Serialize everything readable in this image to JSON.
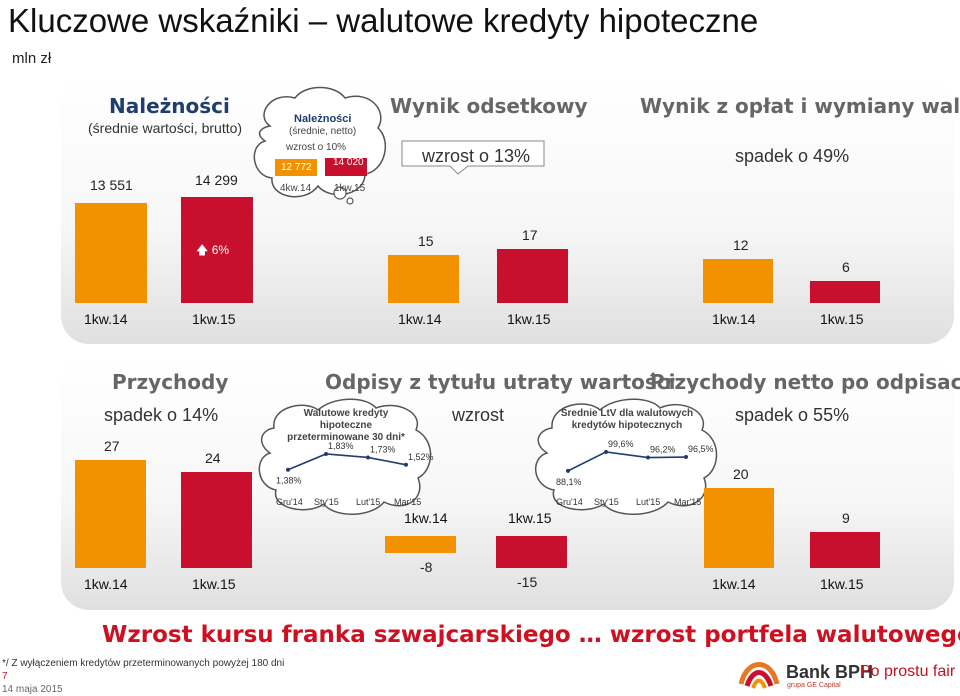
{
  "title": "Kluczowe wskaźniki – walutowe kredyty hipoteczne",
  "unit": "mln zł",
  "colors": {
    "orange": "#f39200",
    "red": "#c8102e",
    "navy": "#1f3d6e",
    "gray_title": "#666666",
    "accent_orange_title": "#e87722"
  },
  "panel_top": {
    "receivables": {
      "title": "Należności",
      "subtitle": "(średnie wartości, brutto)",
      "change_label": "6%",
      "change_icon": "arrow-up-icon",
      "categories": [
        "1kw.14",
        "1kw.15"
      ],
      "value_labels": [
        "13 551",
        "14 299"
      ],
      "values": [
        13551,
        14299
      ],
      "cloud": {
        "title": "Należności",
        "subtitle": "(średnie, netto)",
        "change": "wzrost o 10%",
        "value_labels": [
          "12 772",
          "14 020"
        ],
        "values": [
          12772,
          14020
        ],
        "categories": [
          "4kw.14",
          "1kw.15"
        ]
      }
    },
    "interest": {
      "title": "Wynik odsetkowy",
      "change": "wzrost o 13%",
      "categories": [
        "1kw.14",
        "1kw.15"
      ],
      "value_labels": [
        "15",
        "17"
      ],
      "values": [
        15,
        17
      ]
    },
    "fees": {
      "title": "Wynik z opłat i wymiany walut",
      "change": "spadek o 49%",
      "categories": [
        "1kw.14",
        "1kw.15"
      ],
      "value_labels": [
        "12",
        "6"
      ],
      "values": [
        12,
        6
      ]
    }
  },
  "panel_bottom": {
    "revenue": {
      "title": "Przychody",
      "change": "spadek o 14%",
      "categories": [
        "1kw.14",
        "1kw.15"
      ],
      "value_labels": [
        "27",
        "24"
      ],
      "values": [
        27,
        24
      ]
    },
    "impairment": {
      "title": "Odpisy z tytułu utraty wartości",
      "change": "wzrost",
      "categories": [
        "1kw.14",
        "1kw.15"
      ],
      "value_labels": [
        "-8",
        "-15"
      ],
      "values": [
        -8,
        -15
      ],
      "cloud_npl": {
        "title_lines": [
          "Walutowe kredyty",
          "hipoteczne",
          "przeterminowane 30 dni*"
        ],
        "categories": [
          "Gru'14",
          "Sty'15",
          "Lut'15",
          "Mar'15"
        ],
        "value_labels": [
          "1,38%",
          "1,83%",
          "1,73%",
          "1,52%"
        ],
        "values": [
          1.38,
          1.83,
          1.73,
          1.52
        ]
      },
      "cloud_ltv": {
        "title_lines": [
          "Średnie LtV dla walutowych",
          "kredytów hipotecznych"
        ],
        "categories": [
          "Gru'14",
          "Sty'15",
          "Lut'15",
          "Mar'15"
        ],
        "value_labels": [
          "88,1%",
          "99,6%",
          "96,2%",
          "96,5%"
        ],
        "values": [
          88.1,
          99.6,
          96.2,
          96.5
        ]
      }
    },
    "net_revenue": {
      "title": "Przychody netto po odpisach",
      "change": "spadek o 55%",
      "categories": [
        "1kw.14",
        "1kw.15"
      ],
      "value_labels": [
        "20",
        "9"
      ],
      "values": [
        20,
        9
      ]
    }
  },
  "chart_data": [
    {
      "type": "bar",
      "title": "Należności",
      "subtitle": "(średnie wartości, brutto)",
      "categories": [
        "1kw.14",
        "1kw.15"
      ],
      "values": [
        13551,
        14299
      ]
    },
    {
      "type": "bar",
      "title": "Należności",
      "subtitle": "(średnie, netto)",
      "categories": [
        "4kw.14",
        "1kw.15"
      ],
      "values": [
        12772,
        14020
      ]
    },
    {
      "type": "bar",
      "title": "Wynik odsetkowy",
      "categories": [
        "1kw.14",
        "1kw.15"
      ],
      "values": [
        15,
        17
      ]
    },
    {
      "type": "bar",
      "title": "Wynik z opłat i wymiany walut",
      "categories": [
        "1kw.14",
        "1kw.15"
      ],
      "values": [
        12,
        6
      ]
    },
    {
      "type": "bar",
      "title": "Przychody",
      "categories": [
        "1kw.14",
        "1kw.15"
      ],
      "values": [
        27,
        24
      ]
    },
    {
      "type": "bar",
      "title": "Odpisy z tytułu utraty wartości",
      "categories": [
        "1kw.14",
        "1kw.15"
      ],
      "values": [
        -8,
        -15
      ]
    },
    {
      "type": "line",
      "title": "Walutowe kredyty hipoteczne przeterminowane 30 dni*",
      "categories": [
        "Gru'14",
        "Sty'15",
        "Lut'15",
        "Mar'15"
      ],
      "values": [
        1.38,
        1.83,
        1.73,
        1.52
      ]
    },
    {
      "type": "line",
      "title": "Średnie LtV dla walutowych kredytów hipotecznych",
      "categories": [
        "Gru'14",
        "Sty'15",
        "Lut'15",
        "Mar'15"
      ],
      "values": [
        88.1,
        99.6,
        96.2,
        96.5
      ]
    },
    {
      "type": "bar",
      "title": "Przychody netto po odpisach",
      "categories": [
        "1kw.14",
        "1kw.15"
      ],
      "values": [
        20,
        9
      ]
    }
  ],
  "footer": {
    "claim": "Wzrost kursu franka szwajcarskiego … wzrost portfela walutowego",
    "footnote": "*/ Z wyłączeniem kredytów przeterminowanych powyżej 180 dni",
    "page_number": "7",
    "date": "14 maja 2015",
    "bank_name": "Bank BPH",
    "bank_sub": "grupa GE Capital",
    "slogan": "Po prostu fair"
  }
}
